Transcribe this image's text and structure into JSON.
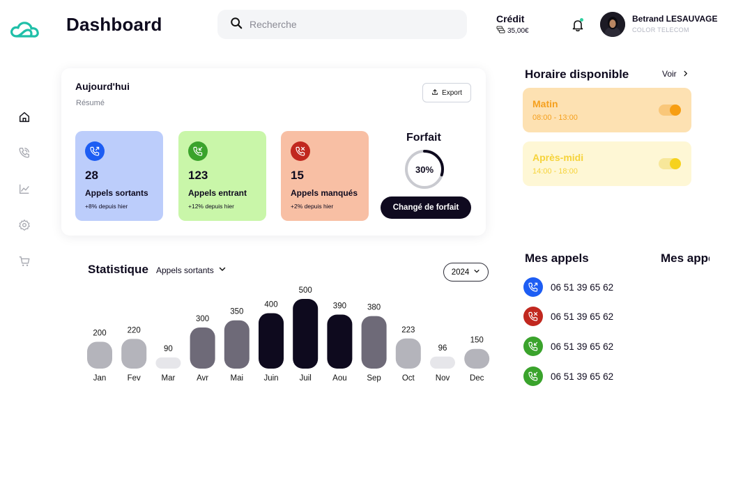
{
  "header": {
    "title": "Dashboard",
    "search_placeholder": "Recherche",
    "credit_label": "Crédit",
    "credit_amount": "35,00€",
    "user_name": "Betrand LESAUVAGE",
    "user_company": "COLOR TELECOM"
  },
  "sidebar": {
    "items": [
      {
        "icon": "home-icon"
      },
      {
        "icon": "phone-icon"
      },
      {
        "icon": "chart-icon"
      },
      {
        "icon": "settings-icon"
      },
      {
        "icon": "cart-icon"
      }
    ]
  },
  "today": {
    "title": "Aujourd'hui",
    "subtitle": "Résumé",
    "export_label": "Export",
    "cards": [
      {
        "value": "28",
        "label": "Appels sortants",
        "delta": "+8% depuis hier",
        "bg": "#bccdfb",
        "icon_bg": "#1d5df3",
        "icon": "outgoing-call-icon"
      },
      {
        "value": "123",
        "label": "Appels entrant",
        "delta": "+12% depuis hier",
        "bg": "#c9f6a9",
        "icon_bg": "#3aa32c",
        "icon": "incoming-call-icon"
      },
      {
        "value": "15",
        "label": "Appels manqués",
        "delta": "+2% depuis hier",
        "bg": "#f8bfa4",
        "icon_bg": "#c1281f",
        "icon": "missed-call-icon"
      }
    ],
    "forfait": {
      "title": "Forfait",
      "percent_label": "30%",
      "percent": 30,
      "button": "Changé de forfait"
    }
  },
  "statistique": {
    "title": "Statistique",
    "filter": "Appels sortants",
    "year": "2024"
  },
  "chart_data": {
    "type": "bar",
    "categories": [
      "Jan",
      "Fev",
      "Mar",
      "Avr",
      "Mai",
      "Juin",
      "Juil",
      "Aou",
      "Sep",
      "Oct",
      "Nov",
      "Dec"
    ],
    "values": [
      200,
      220,
      90,
      300,
      350,
      400,
      500,
      390,
      380,
      223,
      96,
      150
    ],
    "colors": [
      "#b4b4bb",
      "#b4b4bb",
      "#e6e6ea",
      "#6e6a78",
      "#6e6a78",
      "#0e0a1e",
      "#0e0a1e",
      "#0e0a1e",
      "#6e6a78",
      "#b4b4bb",
      "#e6e6ea",
      "#b4b4bb"
    ],
    "title": "",
    "xlabel": "",
    "ylabel": "",
    "ylim": [
      0,
      500
    ],
    "grid": false
  },
  "horaire": {
    "title": "Horaire disponible",
    "voir": "Voir",
    "slots": [
      {
        "name": "Matin",
        "time": "08:00 - 13:00",
        "bg": "#fde1b2",
        "fg": "#f5a01e",
        "toggle_bg": "#f9c77a",
        "knob": "#f79e12",
        "on": true
      },
      {
        "name": "Après-midi",
        "time": "14:00 - 18:00",
        "bg": "#fef7d5",
        "fg": "#f6d33a",
        "toggle_bg": "#f7e79a",
        "knob": "#f6d21d",
        "on": true
      }
    ]
  },
  "appels": {
    "title": "Mes appels",
    "title2": "Mes appels",
    "items": [
      {
        "number": "06 51 39 65 62",
        "type": "outgoing",
        "icon": "outgoing-call-icon",
        "color": "#1d5df3"
      },
      {
        "number": "06 51 39 65 62",
        "type": "missed",
        "icon": "missed-call-icon",
        "color": "#c1281f"
      },
      {
        "number": "06 51 39 65 62",
        "type": "incoming",
        "icon": "incoming-call-icon",
        "color": "#3aa32c"
      },
      {
        "number": "06 51 39 65 62",
        "type": "incoming",
        "icon": "incoming-call-icon",
        "color": "#3aa32c"
      }
    ]
  }
}
